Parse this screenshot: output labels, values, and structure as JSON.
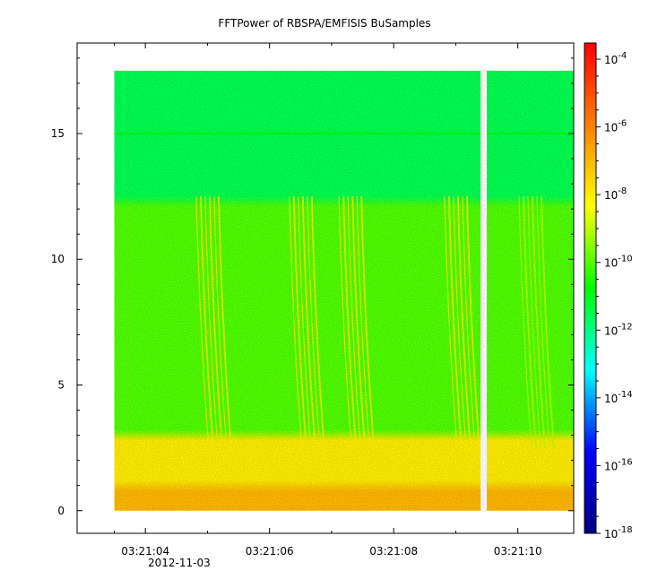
{
  "chart_data": {
    "type": "heatmap",
    "title": "FFTPower of RBSPA/EMFISIS  BuSamples",
    "xlabel": "",
    "ylabel": "",
    "date_label": "2012-11-03",
    "x_axis": {
      "range": [
        "03:21:02.9",
        "03:21:10.9"
      ],
      "major_ticks": [
        "03:21:04",
        "03:21:06",
        "03:21:08",
        "03:21:10"
      ],
      "minor_ticks": [
        "03:21:03.5",
        "03:21:05",
        "03:21:07",
        "03:21:09"
      ]
    },
    "y_axis": {
      "range": [
        -0.9,
        18.6
      ],
      "ticks": [
        0,
        5,
        10,
        15
      ]
    },
    "colorbar": {
      "scale": "log",
      "range": [
        1e-18,
        0.0003
      ],
      "tick_labels": [
        {
          "base": "10",
          "exp": "-4",
          "value": 0.0001
        },
        {
          "base": "10",
          "exp": "-6",
          "value": 1e-06
        },
        {
          "base": "10",
          "exp": "-8",
          "value": 1e-08
        },
        {
          "base": "10",
          "exp": "-10",
          "value": 1e-10
        },
        {
          "base": "10",
          "exp": "-12",
          "value": 1e-12
        },
        {
          "base": "10",
          "exp": "-14",
          "value": 1e-14
        },
        {
          "base": "10",
          "exp": "-16",
          "value": 1e-16
        },
        {
          "base": "10",
          "exp": "-18",
          "value": 1e-18
        }
      ],
      "colormap": [
        "#00007f",
        "#0000ff",
        "#00ffff",
        "#00ff00",
        "#ffff00",
        "#ff7f00",
        "#ff0000"
      ]
    },
    "data": {
      "time_range": [
        "03:21:03.5",
        "03:21:10.9"
      ],
      "frequency_range": [
        0,
        17.5
      ],
      "gap": [
        "03:21:09.4",
        "03:21:09.5"
      ],
      "spectral_line": {
        "y": 15,
        "power": 1e-11
      },
      "levels": [
        {
          "y_range": [
            0,
            1
          ],
          "power": 1e-07
        },
        {
          "y_range": [
            1,
            3
          ],
          "power": 1e-08
        },
        {
          "y_range": [
            3,
            12.3
          ],
          "power": 1e-10
        },
        {
          "y_range": [
            12.3,
            17.5
          ],
          "power": 3e-12
        }
      ],
      "bursts": [
        {
          "t": "03:21:05.0",
          "power": 1e-08
        },
        {
          "t": "03:21:06.5",
          "power": 1e-08
        },
        {
          "t": "03:21:07.3",
          "power": 1e-08
        },
        {
          "t": "03:21:09.0",
          "power": 1e-08
        },
        {
          "t": "03:21:10.2",
          "power": 1e-09
        }
      ]
    }
  }
}
